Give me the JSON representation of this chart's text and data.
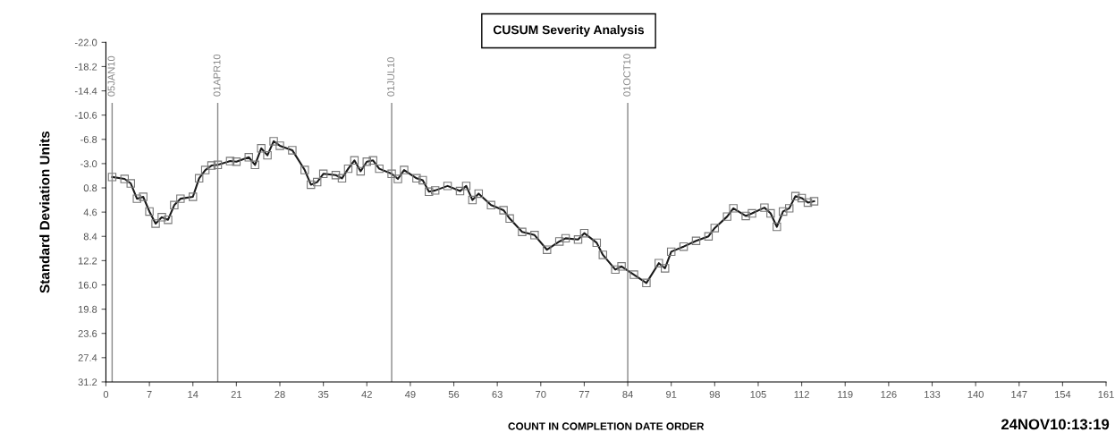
{
  "chart_data": {
    "type": "line",
    "title": "CUSUM Severity Analysis",
    "xlabel": "COUNT IN COMPLETION DATE ORDER",
    "ylabel": "Standard Deviation Units",
    "annotations": [
      "24NOV10:13:19"
    ],
    "series": [
      {
        "color": "#1a1a1a",
        "x": [
          1,
          3,
          4,
          5,
          6,
          7,
          8,
          9,
          10,
          11,
          12,
          14,
          15,
          16,
          17,
          18,
          20,
          21,
          23,
          24,
          25,
          26,
          27,
          28,
          30,
          32,
          33,
          34,
          35,
          37,
          38,
          39,
          40,
          41,
          42,
          43,
          44,
          46,
          47,
          48,
          50,
          51,
          52,
          53,
          55,
          57,
          58,
          59,
          60,
          62,
          64,
          65,
          67,
          69,
          71,
          73,
          74,
          76,
          77,
          79,
          80,
          82,
          83,
          85,
          87,
          89,
          90,
          91,
          93,
          95,
          97,
          98,
          100,
          101,
          103,
          104,
          106,
          107,
          108,
          109,
          110,
          111,
          112,
          113,
          114
        ],
        "values": [
          -0.9,
          -0.6,
          0.1,
          2.5,
          2.2,
          4.5,
          6.4,
          5.4,
          5.8,
          3.5,
          2.5,
          2.2,
          -0.7,
          -2.0,
          -2.7,
          -2.8,
          -3.4,
          -3.3,
          -4.0,
          -2.8,
          -5.4,
          -4.3,
          -6.5,
          -5.8,
          -5.1,
          -2.0,
          0.3,
          -0.1,
          -1.4,
          -1.2,
          -0.7,
          -2.2,
          -3.5,
          -1.8,
          -3.3,
          -3.5,
          -2.2,
          -1.4,
          -0.6,
          -2.0,
          -0.7,
          -0.4,
          1.4,
          1.2,
          0.5,
          1.3,
          0.5,
          2.7,
          1.7,
          3.5,
          4.3,
          5.6,
          7.7,
          8.2,
          10.5,
          9.2,
          8.7,
          8.9,
          7.9,
          9.4,
          11.3,
          13.6,
          13.1,
          14.4,
          15.7,
          12.6,
          13.4,
          10.8,
          10.0,
          9.1,
          8.4,
          7.1,
          5.3,
          4.0,
          5.2,
          4.8,
          3.9,
          4.8,
          6.9,
          4.5,
          4.0,
          2.1,
          2.4,
          3.1,
          2.9
        ]
      }
    ],
    "marker": "square",
    "line_style": "solid",
    "grid": false,
    "legend": false,
    "xlim": [
      0,
      161
    ],
    "xticks": [
      0,
      7,
      14,
      21,
      28,
      35,
      42,
      49,
      56,
      63,
      70,
      77,
      84,
      91,
      98,
      105,
      112,
      119,
      126,
      133,
      140,
      147,
      154,
      161
    ],
    "ylim": [
      31.2,
      -22.0
    ],
    "yticks": [
      {
        "value": -22,
        "label": "-22.0"
      },
      -18.2,
      -14.4,
      -10.6,
      -6.8,
      {
        "value": -3,
        "label": "-3.0"
      },
      0.8,
      4.6,
      8.4,
      12.2,
      {
        "value": 16,
        "label": "16.0"
      },
      19.8,
      23.6,
      27.4,
      31.2
    ],
    "ref_lines": [
      {
        "axis": "x",
        "value": 1,
        "label": "05JAN10",
        "color": "#888888"
      },
      {
        "axis": "x",
        "value": 18,
        "label": "01APR10",
        "color": "#888888"
      },
      {
        "axis": "x",
        "value": 46,
        "label": "01JUL10",
        "color": "#888888"
      },
      {
        "axis": "x",
        "value": 84,
        "label": "01OCT10",
        "color": "#888888"
      }
    ]
  }
}
